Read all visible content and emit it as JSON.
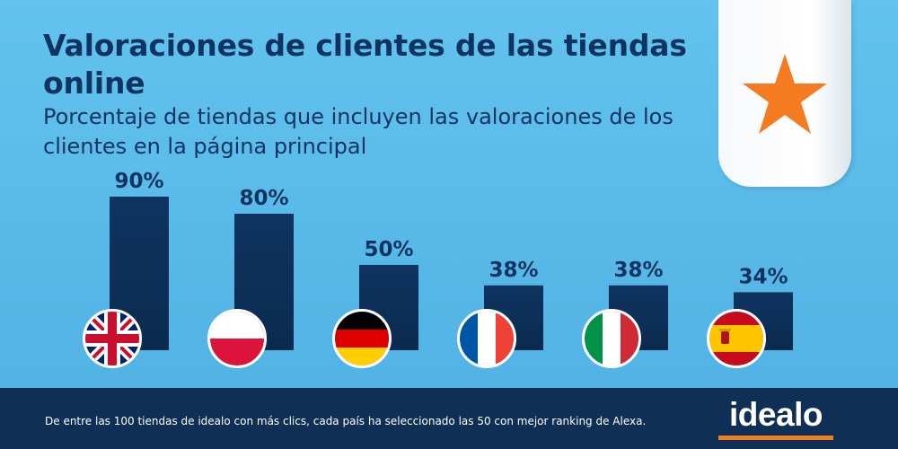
{
  "header": {
    "title": "Valoraciones de clientes de las tiendas online",
    "subtitle": "Porcentaje de tiendas que incluyen las valoraciones de los clientes en la página principal"
  },
  "footer": {
    "note": "De entre las 100 tiendas de idealo con más clics, cada país ha seleccionado las 50 con mejor ranking de Alexa.",
    "logo_text": "idealo"
  },
  "colors": {
    "background": "#5bbdeb",
    "bar": "#0f3461",
    "footer": "#0f2f57",
    "star": "#f47b20",
    "accent": "#f47b20"
  },
  "icons": {
    "ribbon": "star-icon",
    "flags": [
      "uk-flag-icon",
      "poland-flag-icon",
      "germany-flag-icon",
      "france-flag-icon",
      "italy-flag-icon",
      "spain-flag-icon"
    ]
  },
  "chart_data": {
    "type": "bar",
    "title": "",
    "xlabel": "",
    "ylabel": "",
    "categories": [
      "",
      "",
      "",
      "",
      "",
      ""
    ],
    "values": [
      90,
      80,
      50,
      38,
      38,
      34
    ],
    "value_labels": [
      "90%",
      "80%",
      "50%",
      "38%",
      "38%",
      "34%"
    ],
    "ylim": [
      0,
      100
    ],
    "grid": false,
    "legend": "none"
  }
}
